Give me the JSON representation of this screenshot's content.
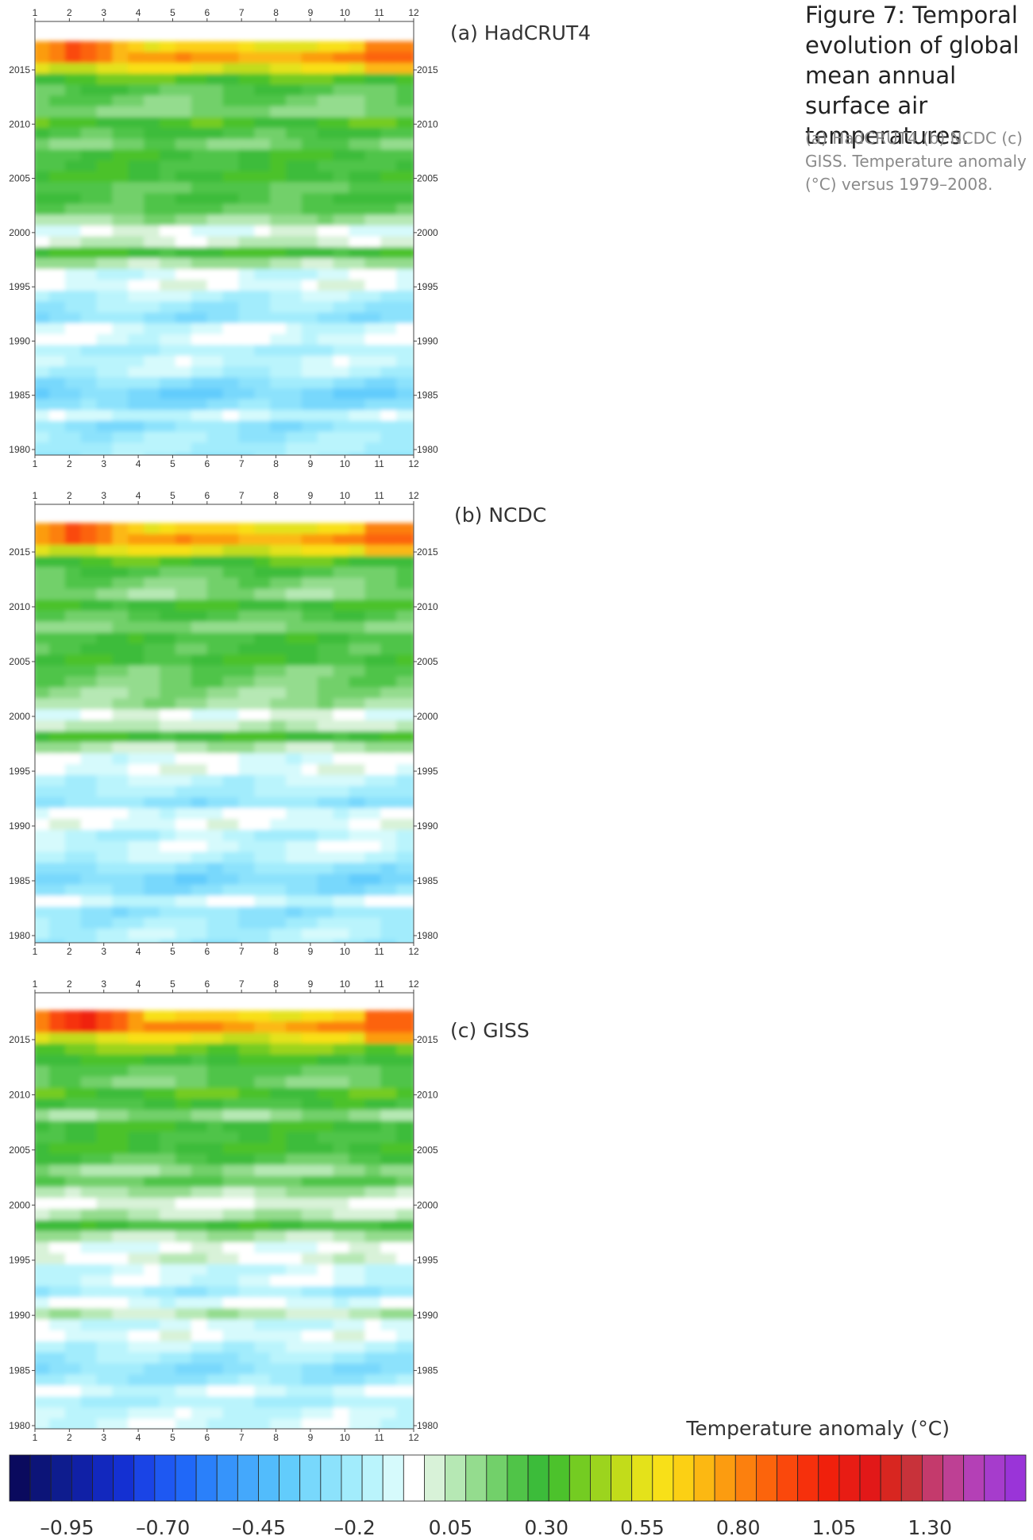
{
  "caption": {
    "title": "Figure 7: Temporal evolution of global mean annual surface air temperatures.",
    "body": "(a) HadCRUT4 (b) NCDC (c) GISS. Temperature anomaly (°C) versus 1979–2008."
  },
  "chart_data": {
    "type": "heatmap",
    "x_ticks": [
      1,
      2,
      3,
      4,
      5,
      6,
      7,
      8,
      9,
      10,
      11,
      12
    ],
    "y_ticks": [
      1980,
      1985,
      1990,
      1995,
      2000,
      2005,
      2010,
      2015
    ],
    "panels": [
      {
        "label": "(a) HadCRUT4",
        "bands": [
          {
            "year": 2017,
            "value": 0.6,
            "peak": {
              "month": 2.3,
              "value": 0.95
            },
            "warm_end": 0.8
          },
          {
            "year": 2016,
            "value": 0.75,
            "peak": {
              "month": 2.3,
              "value": 0.95
            },
            "warm_end": 0.85
          },
          {
            "year": 2015,
            "value": 0.55,
            "warm_end": 0.7
          },
          {
            "year": 2014,
            "value": 0.35
          },
          {
            "year": 2013,
            "value": 0.22
          },
          {
            "year": 2012,
            "value": 0.18
          },
          {
            "year": 2011,
            "value": 0.14
          },
          {
            "year": 2010,
            "value": 0.32
          },
          {
            "year": 2009,
            "value": 0.24
          },
          {
            "year": 2008,
            "value": 0.16
          },
          {
            "year": 2007,
            "value": 0.28
          },
          {
            "year": 2006,
            "value": 0.26
          },
          {
            "year": 2005,
            "value": 0.3
          },
          {
            "year": 2004,
            "value": 0.2
          },
          {
            "year": 2003,
            "value": 0.24
          },
          {
            "year": 2002,
            "value": 0.2
          },
          {
            "year": 2001,
            "value": 0.1
          },
          {
            "year": 2000,
            "value": -0.05
          },
          {
            "year": 1999,
            "value": 0.02
          },
          {
            "year": 1998,
            "value": 0.3
          },
          {
            "year": 1997,
            "value": 0.08
          },
          {
            "year": 1996,
            "value": -0.1
          },
          {
            "year": 1995,
            "value": -0.05
          },
          {
            "year": 1994,
            "value": -0.15
          },
          {
            "year": 1993,
            "value": -0.2
          },
          {
            "year": 1992,
            "value": -0.25
          },
          {
            "year": 1991,
            "value": -0.1
          },
          {
            "year": 1990,
            "value": -0.08
          },
          {
            "year": 1989,
            "value": -0.18
          },
          {
            "year": 1988,
            "value": -0.12
          },
          {
            "year": 1987,
            "value": -0.15
          },
          {
            "year": 1986,
            "value": -0.25
          },
          {
            "year": 1985,
            "value": -0.32
          },
          {
            "year": 1984,
            "value": -0.28
          },
          {
            "year": 1983,
            "value": -0.12
          },
          {
            "year": 1982,
            "value": -0.25
          },
          {
            "year": 1981,
            "value": -0.2
          },
          {
            "year": 1980,
            "value": -0.18
          },
          {
            "year": 1979,
            "value": -0.22
          }
        ]
      },
      {
        "label": "(b) NCDC",
        "bands": [
          {
            "year": 2017,
            "value": 0.6,
            "peak": {
              "month": 2.3,
              "value": 0.95
            },
            "warm_end": 0.8
          },
          {
            "year": 2016,
            "value": 0.75,
            "peak": {
              "month": 2.3,
              "value": 0.95
            },
            "warm_end": 0.85
          },
          {
            "year": 2015,
            "value": 0.55,
            "warm_end": 0.7
          },
          {
            "year": 2014,
            "value": 0.33
          },
          {
            "year": 2013,
            "value": 0.22
          },
          {
            "year": 2012,
            "value": 0.16
          },
          {
            "year": 2011,
            "value": 0.12
          },
          {
            "year": 2010,
            "value": 0.3
          },
          {
            "year": 2009,
            "value": 0.22
          },
          {
            "year": 2008,
            "value": 0.14
          },
          {
            "year": 2007,
            "value": 0.26
          },
          {
            "year": 2006,
            "value": 0.24
          },
          {
            "year": 2005,
            "value": 0.28
          },
          {
            "year": 2004,
            "value": 0.18
          },
          {
            "year": 2003,
            "value": 0.16
          },
          {
            "year": 2002,
            "value": 0.12
          },
          {
            "year": 2001,
            "value": 0.1
          },
          {
            "year": 2000,
            "value": -0.04
          },
          {
            "year": 1999,
            "value": 0.04
          },
          {
            "year": 1998,
            "value": 0.3
          },
          {
            "year": 1997,
            "value": 0.06
          },
          {
            "year": 1996,
            "value": -0.08
          },
          {
            "year": 1995,
            "value": -0.05
          },
          {
            "year": 1994,
            "value": -0.14
          },
          {
            "year": 1993,
            "value": -0.18
          },
          {
            "year": 1992,
            "value": -0.24
          },
          {
            "year": 1991,
            "value": -0.08
          },
          {
            "year": 1990,
            "value": -0.06
          },
          {
            "year": 1989,
            "value": -0.16
          },
          {
            "year": 1988,
            "value": -0.1
          },
          {
            "year": 1987,
            "value": -0.14
          },
          {
            "year": 1986,
            "value": -0.24
          },
          {
            "year": 1985,
            "value": -0.3
          },
          {
            "year": 1984,
            "value": -0.26
          },
          {
            "year": 1983,
            "value": -0.1
          },
          {
            "year": 1982,
            "value": -0.24
          },
          {
            "year": 1981,
            "value": -0.2
          },
          {
            "year": 1980,
            "value": -0.16
          },
          {
            "year": 1979,
            "value": -0.2
          }
        ]
      },
      {
        "label": "(c) GISS",
        "bands": [
          {
            "year": 2017,
            "value": 0.62,
            "peak": {
              "month": 2.5,
              "value": 1.05
            },
            "warm_end": 0.85
          },
          {
            "year": 2016,
            "value": 0.78,
            "peak": {
              "month": 2.5,
              "value": 1.05
            },
            "warm_end": 0.9
          },
          {
            "year": 2015,
            "value": 0.55,
            "warm_end": 0.75
          },
          {
            "year": 2014,
            "value": 0.4
          },
          {
            "year": 2013,
            "value": 0.3
          },
          {
            "year": 2012,
            "value": 0.2
          },
          {
            "year": 2011,
            "value": 0.16
          },
          {
            "year": 2010,
            "value": 0.34
          },
          {
            "year": 2009,
            "value": 0.26
          },
          {
            "year": 2008,
            "value": 0.12
          },
          {
            "year": 2007,
            "value": 0.3
          },
          {
            "year": 2006,
            "value": 0.26
          },
          {
            "year": 2005,
            "value": 0.3
          },
          {
            "year": 2004,
            "value": 0.22
          },
          {
            "year": 2003,
            "value": 0.1
          },
          {
            "year": 2002,
            "value": 0.2
          },
          {
            "year": 2001,
            "value": 0.08
          },
          {
            "year": 2000,
            "value": -0.02
          },
          {
            "year": 1999,
            "value": 0.06
          },
          {
            "year": 1998,
            "value": 0.26
          },
          {
            "year": 1997,
            "value": 0.06
          },
          {
            "year": 1996,
            "value": -0.06
          },
          {
            "year": 1995,
            "value": 0.0
          },
          {
            "year": 1994,
            "value": -0.12
          },
          {
            "year": 1993,
            "value": -0.1
          },
          {
            "year": 1992,
            "value": -0.2
          },
          {
            "year": 1991,
            "value": -0.08
          },
          {
            "year": 1990,
            "value": 0.05
          },
          {
            "year": 1989,
            "value": -0.12
          },
          {
            "year": 1988,
            "value": -0.06
          },
          {
            "year": 1987,
            "value": -0.14
          },
          {
            "year": 1986,
            "value": -0.2
          },
          {
            "year": 1985,
            "value": -0.26
          },
          {
            "year": 1984,
            "value": -0.22
          },
          {
            "year": 1983,
            "value": -0.1
          },
          {
            "year": 1982,
            "value": -0.18
          },
          {
            "year": 1981,
            "value": -0.12
          },
          {
            "year": 1980,
            "value": -0.1
          },
          {
            "year": 1979,
            "value": -0.14
          }
        ]
      }
    ],
    "colorbar": {
      "title": "Temperature anomaly (°C)",
      "min": -1.1,
      "max": 1.55,
      "tick_labels": [
        "–0.95",
        "–0.70",
        "–0.45",
        "–0.2",
        "0.05",
        "0.30",
        "0.55",
        "0.80",
        "1.05",
        "1.30"
      ],
      "tick_values": [
        -0.95,
        -0.7,
        -0.45,
        -0.2,
        0.05,
        0.3,
        0.55,
        0.8,
        1.05,
        1.3
      ],
      "colors": [
        "#0a0a5e",
        "#0c1478",
        "#0e1c8e",
        "#1020a6",
        "#1228be",
        "#1430d2",
        "#1a44e6",
        "#1e58f2",
        "#2068f8",
        "#2a80fa",
        "#3694fb",
        "#44a8fc",
        "#52bcfc",
        "#62ccfc",
        "#78d8fc",
        "#8ce2fc",
        "#a2ecfc",
        "#baf4fc",
        "#d6fafc",
        "#ffffff",
        "#d8f2d8",
        "#b6e8b4",
        "#94dc8e",
        "#72d06a",
        "#50c448",
        "#3cbc3a",
        "#4cc22c",
        "#74cc22",
        "#9cd41e",
        "#c2dc1a",
        "#e4e21a",
        "#f8e018",
        "#fcd014",
        "#fcb812",
        "#fc9c10",
        "#fc800e",
        "#fc640c",
        "#fa480c",
        "#f6300c",
        "#f0200c",
        "#e81c14",
        "#e21818",
        "#d82620",
        "#c8323a",
        "#c43a6c",
        "#be4094",
        "#b440b6",
        "#a63ccc",
        "#9a34d8"
      ]
    }
  }
}
